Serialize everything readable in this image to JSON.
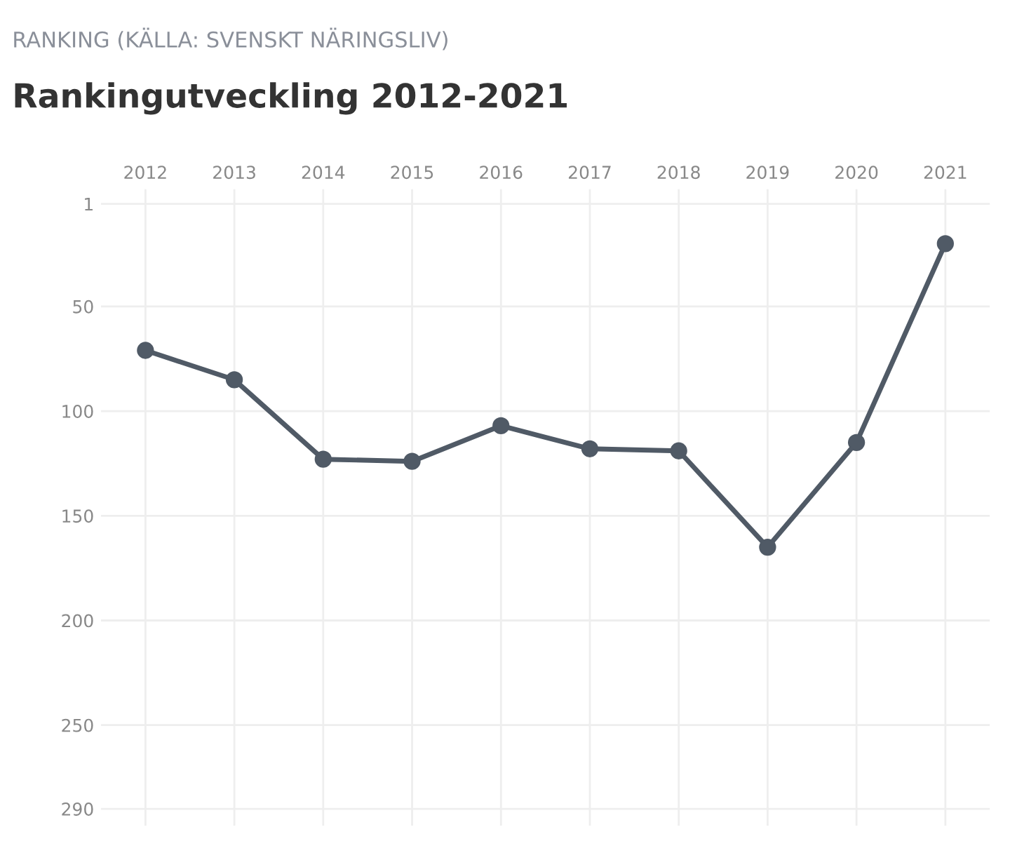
{
  "chart_data": {
    "type": "line",
    "subtitle": "RANKING (KÄLLA: SVENSKT NÄRINGSLIV)",
    "title": "Rankingutveckling 2012-2021",
    "categories": [
      "2012",
      "2013",
      "2014",
      "2015",
      "2016",
      "2017",
      "2018",
      "2019",
      "2020",
      "2021"
    ],
    "series": [
      {
        "color": "#505a66",
        "values": [
          71,
          85,
          123,
          124,
          107,
          118,
          119,
          165,
          115,
          20
        ]
      }
    ],
    "ylim": [
      298,
      -6
    ],
    "yticks": [
      1,
      50,
      100,
      150,
      200,
      250,
      290
    ],
    "grid": true,
    "marker": "circle",
    "line_style": "solid",
    "legend": false
  }
}
